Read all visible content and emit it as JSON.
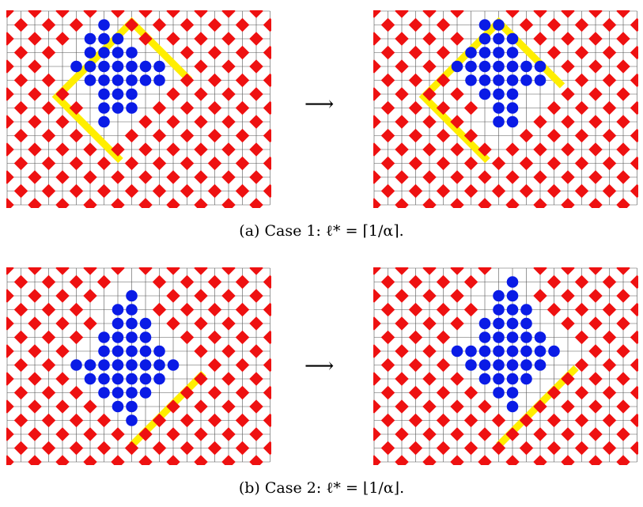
{
  "colors": {
    "background": "#ffffff",
    "grid": "#555555",
    "red_site": "#ee1111",
    "blue_site": "#0a1be6",
    "highlight": "#ffee00"
  },
  "rows": [
    {
      "caption": {
        "label": "(a) Case 1:",
        "formula": "ℓ* = ⌈1/α⌉."
      },
      "arrow": "⟶",
      "before": {
        "blue": [
          [
            -2,
            -4
          ],
          [
            -3,
            -3
          ],
          [
            -2,
            -3
          ],
          [
            -1,
            -3
          ],
          [
            -3,
            -2
          ],
          [
            -2,
            -2
          ],
          [
            -1,
            -2
          ],
          [
            0,
            -2
          ],
          [
            -4,
            -1
          ],
          [
            -3,
            -1
          ],
          [
            -2,
            -1
          ],
          [
            -1,
            -1
          ],
          [
            0,
            -1
          ],
          [
            1,
            -1
          ],
          [
            2,
            -1
          ],
          [
            -3,
            0
          ],
          [
            -2,
            0
          ],
          [
            -1,
            0
          ],
          [
            0,
            0
          ],
          [
            1,
            0
          ],
          [
            2,
            0
          ],
          [
            -2,
            1
          ],
          [
            -1,
            1
          ],
          [
            0,
            1
          ],
          [
            -2,
            2
          ],
          [
            -1,
            2
          ],
          [
            0,
            2
          ],
          [
            -2,
            3
          ]
        ],
        "clear_rows": 13,
        "clear_cols": 16
      },
      "after": {
        "blue": [
          [
            -1,
            -4
          ],
          [
            0,
            -4
          ],
          [
            -1,
            -3
          ],
          [
            0,
            -3
          ],
          [
            1,
            -3
          ],
          [
            -2,
            -2
          ],
          [
            -1,
            -2
          ],
          [
            0,
            -2
          ],
          [
            1,
            -2
          ],
          [
            -3,
            -1
          ],
          [
            -2,
            -1
          ],
          [
            -1,
            -1
          ],
          [
            0,
            -1
          ],
          [
            1,
            -1
          ],
          [
            2,
            -1
          ],
          [
            3,
            -1
          ],
          [
            -2,
            0
          ],
          [
            -1,
            0
          ],
          [
            0,
            0
          ],
          [
            1,
            0
          ],
          [
            2,
            0
          ],
          [
            3,
            0
          ],
          [
            -1,
            1
          ],
          [
            0,
            1
          ],
          [
            1,
            1
          ],
          [
            0,
            2
          ],
          [
            1,
            2
          ],
          [
            1,
            3
          ],
          [
            0,
            3
          ]
        ]
      }
    },
    {
      "caption": {
        "label": "(b) Case 2:",
        "formula": "ℓ* = ⌊1/α⌋."
      },
      "arrow": "⟶",
      "before": {
        "blue": [
          [
            0,
            -5
          ],
          [
            -1,
            -4
          ],
          [
            0,
            -4
          ],
          [
            -1,
            -3
          ],
          [
            0,
            -3
          ],
          [
            1,
            -3
          ],
          [
            -2,
            -2
          ],
          [
            -1,
            -2
          ],
          [
            0,
            -2
          ],
          [
            1,
            -2
          ],
          [
            -2,
            -1
          ],
          [
            -1,
            -1
          ],
          [
            0,
            -1
          ],
          [
            1,
            -1
          ],
          [
            2,
            -1
          ],
          [
            -4,
            0
          ],
          [
            -3,
            0
          ],
          [
            -2,
            0
          ],
          [
            -1,
            0
          ],
          [
            0,
            0
          ],
          [
            1,
            0
          ],
          [
            2,
            0
          ],
          [
            3,
            0
          ],
          [
            -3,
            1
          ],
          [
            -2,
            1
          ],
          [
            -1,
            1
          ],
          [
            0,
            1
          ],
          [
            1,
            1
          ],
          [
            2,
            1
          ],
          [
            -2,
            2
          ],
          [
            -1,
            2
          ],
          [
            0,
            2
          ],
          [
            1,
            2
          ],
          [
            -1,
            3
          ],
          [
            0,
            3
          ],
          [
            0,
            4
          ]
        ]
      },
      "after": {
        "blue": [
          [
            1,
            -6
          ],
          [
            0,
            -5
          ],
          [
            1,
            -5
          ],
          [
            0,
            -4
          ],
          [
            1,
            -4
          ],
          [
            2,
            -4
          ],
          [
            -1,
            -3
          ],
          [
            0,
            -3
          ],
          [
            1,
            -3
          ],
          [
            2,
            -3
          ],
          [
            -1,
            -2
          ],
          [
            0,
            -2
          ],
          [
            1,
            -2
          ],
          [
            2,
            -2
          ],
          [
            3,
            -2
          ],
          [
            -3,
            -1
          ],
          [
            -2,
            -1
          ],
          [
            -1,
            -1
          ],
          [
            0,
            -1
          ],
          [
            1,
            -1
          ],
          [
            2,
            -1
          ],
          [
            3,
            -1
          ],
          [
            4,
            -1
          ],
          [
            -2,
            0
          ],
          [
            -1,
            0
          ],
          [
            0,
            0
          ],
          [
            1,
            0
          ],
          [
            2,
            0
          ],
          [
            3,
            0
          ],
          [
            -1,
            1
          ],
          [
            0,
            1
          ],
          [
            1,
            1
          ],
          [
            2,
            1
          ],
          [
            0,
            2
          ],
          [
            1,
            2
          ],
          [
            1,
            3
          ]
        ]
      }
    }
  ]
}
